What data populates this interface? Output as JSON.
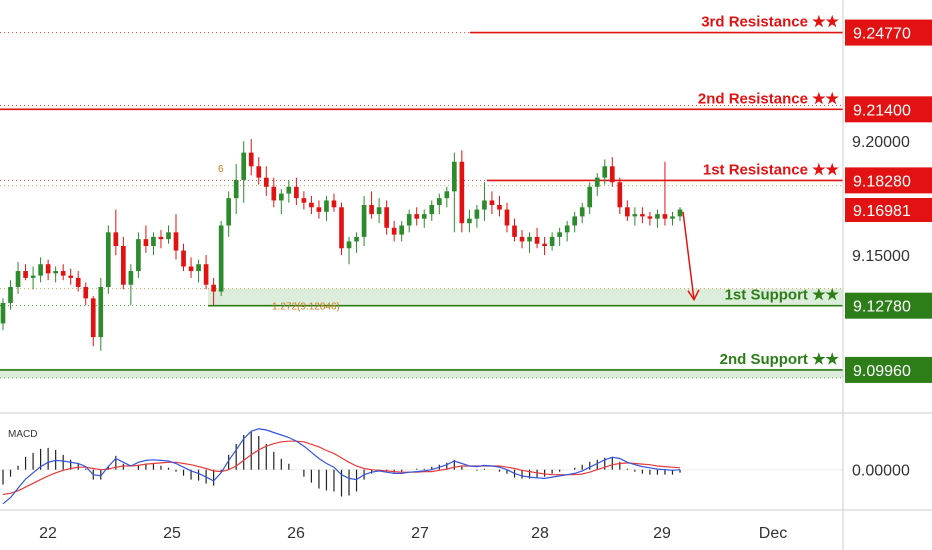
{
  "colors": {
    "resistance": "#e31212",
    "support": "#2d7d19",
    "support_zone": "rgba(120,185,110,0.25)",
    "bull": "#2d8a2d",
    "bear": "#e31212",
    "macd_line": "#3355dd",
    "signal_line": "#e83a3a",
    "hist": "#222222",
    "fib": "#c77d1a",
    "axis_text": "#333333",
    "divider": "#cccccc"
  },
  "chart_data": [
    {
      "type": "candlestick",
      "ylim": [
        9.082,
        9.262
      ],
      "x_labels": [
        "22",
        "25",
        "26",
        "27",
        "28",
        "29",
        "Dec"
      ],
      "y_ticks": [
        "9.20000",
        "9.15000"
      ],
      "current_price": "9.16981",
      "levels": [
        {
          "name": "3rd Resistance",
          "stars": "★★",
          "value": 9.2477,
          "label": "9.24770",
          "kind": "resistance"
        },
        {
          "name": "2nd Resistance",
          "stars": "★★",
          "value": 9.214,
          "label": "9.21400",
          "kind": "resistance"
        },
        {
          "name": "1st Resistance",
          "stars": "★★",
          "value": 9.1828,
          "label": "9.18280",
          "kind": "resistance"
        },
        {
          "name": "1st Support",
          "stars": "★★",
          "value": 9.1278,
          "label": "9.12780",
          "kind": "support"
        },
        {
          "name": "2nd Support",
          "stars": "★★",
          "value": 9.0996,
          "label": "9.09960",
          "kind": "support"
        }
      ],
      "annotations": {
        "fib_extension": "1.272(9.12846)",
        "fib_level": "6"
      },
      "candles": [
        [
          9.12,
          9.131,
          9.117,
          9.129
        ],
        [
          9.129,
          9.139,
          9.126,
          9.136
        ],
        [
          9.136,
          9.147,
          9.133,
          9.143
        ],
        [
          9.143,
          9.146,
          9.139,
          9.14
        ],
        [
          9.14,
          9.145,
          9.135,
          9.141
        ],
        [
          9.141,
          9.149,
          9.138,
          9.146
        ],
        [
          9.146,
          9.148,
          9.139,
          9.142
        ],
        [
          9.142,
          9.145,
          9.138,
          9.143
        ],
        [
          9.143,
          9.146,
          9.139,
          9.141
        ],
        [
          9.141,
          9.144,
          9.137,
          9.14
        ],
        [
          9.14,
          9.143,
          9.134,
          9.136
        ],
        [
          9.136,
          9.138,
          9.128,
          9.131
        ],
        [
          9.131,
          9.132,
          9.11,
          9.114
        ],
        [
          9.114,
          9.14,
          9.108,
          9.136
        ],
        [
          9.136,
          9.163,
          9.133,
          9.16
        ],
        [
          9.16,
          9.17,
          9.15,
          9.154
        ],
        [
          9.154,
          9.158,
          9.135,
          9.137
        ],
        [
          9.137,
          9.146,
          9.128,
          9.143
        ],
        [
          9.143,
          9.16,
          9.14,
          9.157
        ],
        [
          9.157,
          9.163,
          9.151,
          9.154
        ],
        [
          9.154,
          9.16,
          9.15,
          9.158
        ],
        [
          9.158,
          9.161,
          9.153,
          9.157
        ],
        [
          9.157,
          9.163,
          9.155,
          9.16
        ],
        [
          9.16,
          9.168,
          9.148,
          9.152
        ],
        [
          9.152,
          9.155,
          9.143,
          9.145
        ],
        [
          9.145,
          9.149,
          9.14,
          9.143
        ],
        [
          9.143,
          9.148,
          9.138,
          9.146
        ],
        [
          9.146,
          9.15,
          9.135,
          9.137
        ],
        [
          9.137,
          9.14,
          9.128,
          9.134
        ],
        [
          9.134,
          9.165,
          9.132,
          9.163
        ],
        [
          9.163,
          9.178,
          9.158,
          9.175
        ],
        [
          9.175,
          9.19,
          9.168,
          9.183
        ],
        [
          9.183,
          9.2,
          9.173,
          9.195
        ],
        [
          9.195,
          9.201,
          9.185,
          9.189
        ],
        [
          9.189,
          9.193,
          9.181,
          9.184
        ],
        [
          9.184,
          9.189,
          9.176,
          9.18
        ],
        [
          9.18,
          9.184,
          9.171,
          9.174
        ],
        [
          9.174,
          9.179,
          9.168,
          9.177
        ],
        [
          9.177,
          9.183,
          9.173,
          9.18
        ],
        [
          9.18,
          9.184,
          9.172,
          9.175
        ],
        [
          9.175,
          9.178,
          9.17,
          9.173
        ],
        [
          9.173,
          9.176,
          9.168,
          9.171
        ],
        [
          9.171,
          9.174,
          9.166,
          9.169
        ],
        [
          9.169,
          9.176,
          9.165,
          9.174
        ],
        [
          9.174,
          9.177,
          9.169,
          9.171
        ],
        [
          9.171,
          9.173,
          9.15,
          9.153
        ],
        [
          9.153,
          9.158,
          9.146,
          9.156
        ],
        [
          9.156,
          9.16,
          9.151,
          9.158
        ],
        [
          9.158,
          9.176,
          9.154,
          9.172
        ],
        [
          9.172,
          9.178,
          9.166,
          9.168
        ],
        [
          9.168,
          9.175,
          9.164,
          9.171
        ],
        [
          9.171,
          9.174,
          9.159,
          9.162
        ],
        [
          9.162,
          9.165,
          9.156,
          9.159
        ],
        [
          9.159,
          9.165,
          9.156,
          9.163
        ],
        [
          9.163,
          9.17,
          9.16,
          9.168
        ],
        [
          9.168,
          9.171,
          9.163,
          9.166
        ],
        [
          9.166,
          9.17,
          9.162,
          9.168
        ],
        [
          9.168,
          9.174,
          9.165,
          9.172
        ],
        [
          9.172,
          9.177,
          9.168,
          9.175
        ],
        [
          9.175,
          9.18,
          9.171,
          9.178
        ],
        [
          9.178,
          9.195,
          9.16,
          9.191
        ],
        [
          9.191,
          9.196,
          9.16,
          9.164
        ],
        [
          9.164,
          9.17,
          9.16,
          9.166
        ],
        [
          9.166,
          9.172,
          9.162,
          9.17
        ],
        [
          9.17,
          9.182,
          9.165,
          9.174
        ],
        [
          9.174,
          9.178,
          9.168,
          9.172
        ],
        [
          9.172,
          9.176,
          9.167,
          9.17
        ],
        [
          9.17,
          9.173,
          9.16,
          9.163
        ],
        [
          9.163,
          9.166,
          9.156,
          9.158
        ],
        [
          9.158,
          9.161,
          9.153,
          9.156
        ],
        [
          9.156,
          9.16,
          9.151,
          9.158
        ],
        [
          9.158,
          9.162,
          9.153,
          9.155
        ],
        [
          9.155,
          9.158,
          9.15,
          9.154
        ],
        [
          9.154,
          9.16,
          9.152,
          9.158
        ],
        [
          9.158,
          9.162,
          9.154,
          9.16
        ],
        [
          9.16,
          9.165,
          9.156,
          9.163
        ],
        [
          9.163,
          9.169,
          9.16,
          9.167
        ],
        [
          9.167,
          9.173,
          9.164,
          9.171
        ],
        [
          9.171,
          9.182,
          9.168,
          9.18
        ],
        [
          9.18,
          9.186,
          9.176,
          9.184
        ],
        [
          9.184,
          9.192,
          9.181,
          9.189
        ],
        [
          9.189,
          9.193,
          9.18,
          9.182
        ],
        [
          9.182,
          9.184,
          9.168,
          9.171
        ],
        [
          9.171,
          9.174,
          9.165,
          9.167
        ],
        [
          9.167,
          9.171,
          9.163,
          9.168
        ],
        [
          9.168,
          9.171,
          9.164,
          9.167
        ],
        [
          9.167,
          9.169,
          9.163,
          9.166
        ],
        [
          9.166,
          9.17,
          9.162,
          9.168
        ],
        [
          9.168,
          9.191,
          9.163,
          9.166
        ],
        [
          9.166,
          9.169,
          9.163,
          9.167
        ],
        [
          9.167,
          9.171,
          9.165,
          9.17
        ]
      ],
      "title": "",
      "xlabel": "",
      "ylabel": ""
    },
    {
      "type": "macd",
      "title": "MACD",
      "y_ticks": [
        "0.00000"
      ],
      "ylim": [
        -0.0065,
        0.0085
      ],
      "macd": [
        -0.0055,
        -0.0045,
        -0.003,
        -0.0015,
        -0.0005,
        0.0005,
        0.0012,
        0.0015,
        0.0014,
        0.0012,
        0.001,
        0.0005,
        -0.0008,
        -0.001,
        0.0005,
        0.0018,
        0.0012,
        0.0006,
        0.0012,
        0.0015,
        0.0016,
        0.0015,
        0.0014,
        0.001,
        0.0004,
        -0.0002,
        -0.0006,
        -0.0012,
        -0.0018,
        -0.0005,
        0.0015,
        0.0032,
        0.005,
        0.0062,
        0.0066,
        0.0064,
        0.006,
        0.0056,
        0.0052,
        0.0046,
        0.0038,
        0.0028,
        0.0018,
        0.001,
        0.0004,
        -0.0008,
        -0.0014,
        -0.0016,
        -0.0008,
        -0.0004,
        -0.0002,
        -0.0004,
        -0.0006,
        -0.0006,
        -0.0004,
        -0.0003,
        -0.0002,
        0.0,
        0.0004,
        0.0008,
        0.0014,
        0.001,
        0.0006,
        0.0005,
        0.0007,
        0.0006,
        0.0004,
        0.0,
        -0.0006,
        -0.001,
        -0.0012,
        -0.0013,
        -0.0014,
        -0.0012,
        -0.001,
        -0.0008,
        -0.0006,
        -0.0002,
        0.0004,
        0.001,
        0.0016,
        0.002,
        0.0018,
        0.0012,
        0.0008,
        0.0005,
        0.0003,
        0.0001,
        0.0,
        -0.0001,
        0.0
      ],
      "signal": [
        -0.004,
        -0.0038,
        -0.0034,
        -0.0028,
        -0.0022,
        -0.0016,
        -0.001,
        -0.0005,
        -0.0001,
        0.0002,
        0.0004,
        0.0004,
        0.0002,
        0.0,
        0.0001,
        0.0004,
        0.0006,
        0.0006,
        0.0007,
        0.0009,
        0.001,
        0.0011,
        0.0012,
        0.0012,
        0.001,
        0.0008,
        0.0005,
        0.0002,
        -0.0002,
        -0.0003,
        0.0,
        0.0006,
        0.0015,
        0.0024,
        0.0032,
        0.0038,
        0.0042,
        0.0045,
        0.0046,
        0.0046,
        0.0045,
        0.0041,
        0.0037,
        0.0031,
        0.0026,
        0.0019,
        0.0012,
        0.0006,
        0.0002,
        0.0,
        -0.0001,
        -0.0002,
        -0.0003,
        -0.0004,
        -0.0004,
        -0.0004,
        -0.0003,
        -0.0003,
        -0.0001,
        0.0001,
        0.0004,
        0.0006,
        0.0006,
        0.0006,
        0.0006,
        0.0006,
        0.0006,
        0.0004,
        0.0002,
        -0.0001,
        -0.0003,
        -0.0005,
        -0.0007,
        -0.0008,
        -0.0008,
        -0.0008,
        -0.0008,
        -0.0007,
        -0.0004,
        0.0,
        0.0004,
        0.0008,
        0.001,
        0.0011,
        0.001,
        0.0009,
        0.0008,
        0.0006,
        0.0005,
        0.0004,
        0.0003
      ]
    }
  ]
}
